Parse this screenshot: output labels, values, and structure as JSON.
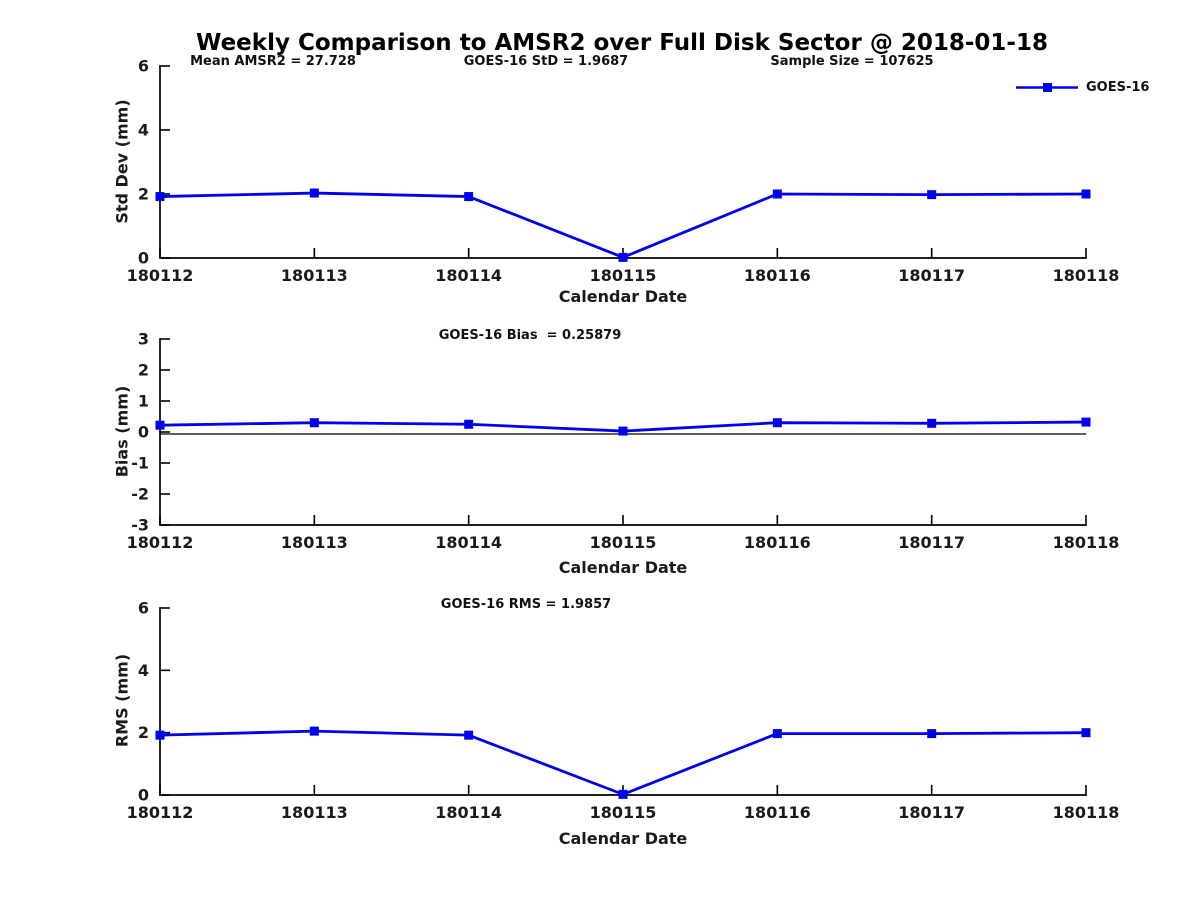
{
  "title": "Weekly Comparison to AMSR2 over Full Disk Sector @ 2018-01-18",
  "legend": {
    "label": "GOES-16",
    "color": "#0000EE"
  },
  "chart_data": [
    {
      "type": "line",
      "categories": [
        "180112",
        "180113",
        "180114",
        "180115",
        "180116",
        "180117",
        "180118"
      ],
      "series": [
        {
          "name": "GOES-16",
          "values": [
            1.92,
            2.03,
            1.92,
            0.02,
            2.0,
            1.98,
            2.0
          ]
        }
      ],
      "annotations": [
        "Mean AMSR2 = 27.728",
        "GOES-16 StD = 1.9687",
        "Sample Size = 107625"
      ],
      "xlabel": "Calendar Date",
      "ylabel": "Std Dev (mm)",
      "ylim": [
        0,
        6
      ],
      "yticks": [
        0,
        2,
        4,
        6
      ],
      "zero_line": false,
      "legend_position": "upper-right-outside",
      "grid": false
    },
    {
      "type": "line",
      "categories": [
        "180112",
        "180113",
        "180114",
        "180115",
        "180116",
        "180117",
        "180118"
      ],
      "series": [
        {
          "name": "GOES-16",
          "values": [
            0.22,
            0.3,
            0.25,
            0.03,
            0.3,
            0.28,
            0.32
          ]
        }
      ],
      "annotations": [
        "GOES-16 Bias  = 0.25879"
      ],
      "xlabel": "Calendar Date",
      "ylabel": "Bias (mm)",
      "ylim": [
        -3,
        3
      ],
      "yticks": [
        -3,
        -2,
        -1,
        0,
        1,
        2,
        3
      ],
      "zero_line": true,
      "grid": false
    },
    {
      "type": "line",
      "categories": [
        "180112",
        "180113",
        "180114",
        "180115",
        "180116",
        "180117",
        "180118"
      ],
      "series": [
        {
          "name": "GOES-16",
          "values": [
            1.92,
            2.05,
            1.92,
            0.02,
            1.97,
            1.97,
            2.0
          ]
        }
      ],
      "annotations": [
        "GOES-16 RMS = 1.9857"
      ],
      "xlabel": "Calendar Date",
      "ylabel": "RMS (mm)",
      "ylim": [
        0,
        6
      ],
      "yticks": [
        0,
        2,
        4,
        6
      ],
      "zero_line": false,
      "grid": false
    }
  ]
}
